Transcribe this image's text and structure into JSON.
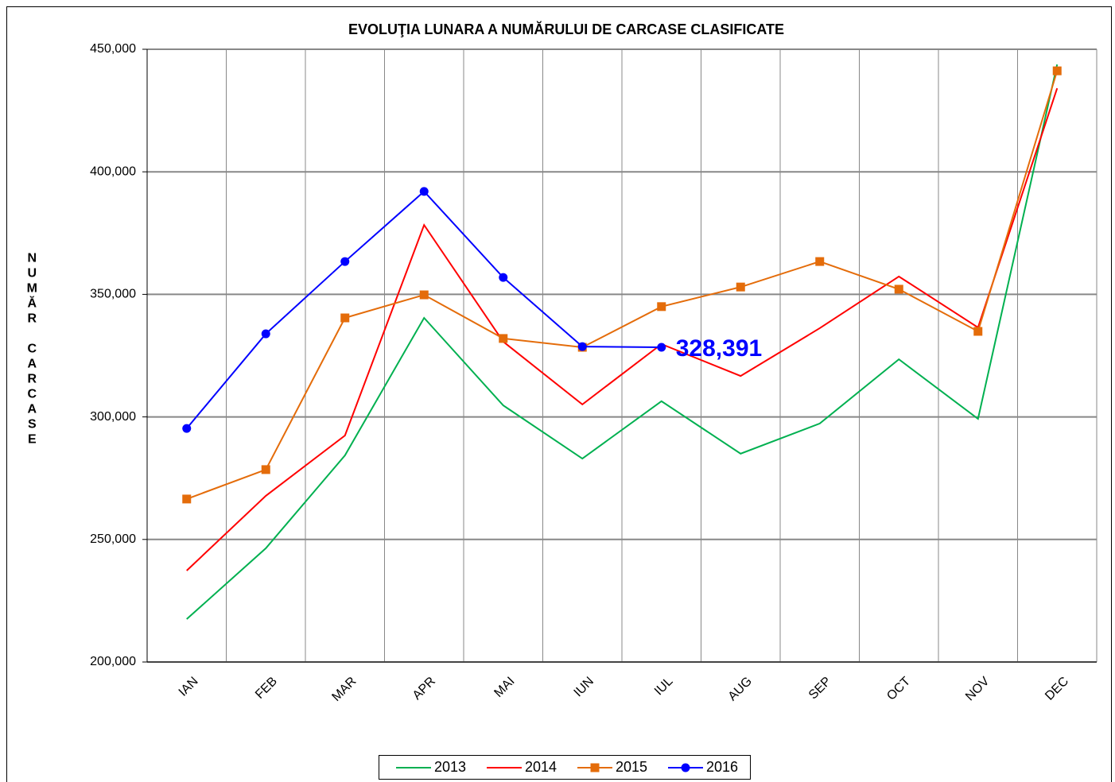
{
  "chart_data": {
    "type": "line",
    "title": "EVOLUŢIA LUNARA A NUMĂRULUI DE CARCASE CLASIFICATE",
    "y_label": "NUMĂR CARCASE",
    "categories": [
      "IAN",
      "FEB",
      "MAR",
      "APR",
      "MAI",
      "IUN",
      "IUL",
      "AUG",
      "SEP",
      "OCT",
      "NOV",
      "DEC"
    ],
    "series": [
      {
        "name": "2013",
        "color": "#00b050",
        "marker": "none",
        "values": [
          217500,
          246400,
          284300,
          340400,
          304700,
          283000,
          306400,
          285000,
          297300,
          323500,
          299200,
          443800
        ]
      },
      {
        "name": "2014",
        "color": "#ff0000",
        "marker": "none",
        "values": [
          237300,
          267800,
          292400,
          378300,
          330700,
          305100,
          329700,
          316700,
          336200,
          357300,
          336500,
          434100
        ]
      },
      {
        "name": "2015",
        "color": "#e46c0a",
        "marker": "square",
        "values": [
          266500,
          278500,
          340400,
          349800,
          332000,
          328400,
          345000,
          353000,
          363400,
          352100,
          334900,
          441200
        ]
      },
      {
        "name": "2016",
        "color": "#0000ff",
        "marker": "circle",
        "values": [
          295300,
          333900,
          363400,
          392000,
          356900,
          328700,
          328391,
          null,
          null,
          null,
          null,
          null
        ],
        "value_labels": [
          null,
          null,
          null,
          null,
          null,
          null,
          "328,391",
          null,
          null,
          null,
          null,
          null
        ]
      }
    ],
    "ylim": [
      200000,
      450000
    ],
    "yticks": [
      {
        "value": 200000,
        "label": "200,000"
      },
      {
        "value": 250000,
        "label": "250,000"
      },
      {
        "value": 300000,
        "label": "300,000"
      },
      {
        "value": 350000,
        "label": "350,000"
      },
      {
        "value": 400000,
        "label": "400,000"
      },
      {
        "value": 450000,
        "label": "450,000"
      }
    ],
    "grid": true,
    "legend": "bottom"
  }
}
